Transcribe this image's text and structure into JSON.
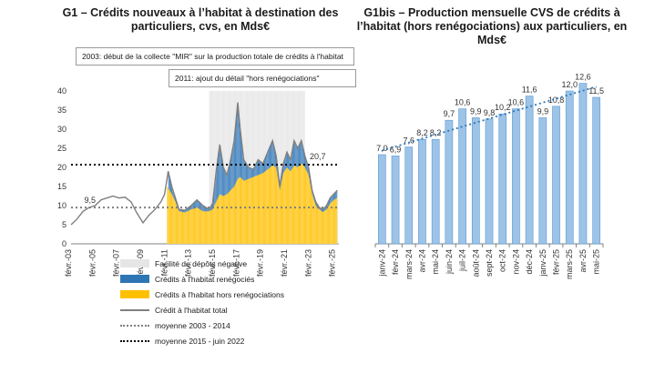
{
  "g1": {
    "title": "G1 – Crédits nouveaux à l’habitat à destination des particuliers, cvs, en Mds€",
    "note1": "2003: début de la collecte \"MIR\" sur la production totale de crédits à l'habitat",
    "note2": "2011: ajout du détail \"hors renégociations\"",
    "legend": [
      {
        "label": "Facilité de dépôts négative",
        "color": "#e6e6e6",
        "kind": "band",
        "icon": "band-swatch"
      },
      {
        "label": "Crédits à l'habitat renégociés",
        "color": "#2e75b6",
        "kind": "bar",
        "icon": "bar-swatch"
      },
      {
        "label": "Crédits à l'habitat hors renégociations",
        "color": "#ffc000",
        "kind": "bar",
        "icon": "bar-swatch"
      },
      {
        "label": "Crédit à l'habitat total",
        "color": "#7f7f7f",
        "kind": "line",
        "icon": "line-swatch"
      },
      {
        "label": "moyenne 2003 - 2014",
        "color": "#7f7f7f",
        "kind": "dotted",
        "icon": "dotted-swatch"
      },
      {
        "label": "moyenne 2015 - juin 2022",
        "color": "#000000",
        "kind": "dotted",
        "icon": "dotted-swatch"
      }
    ],
    "avg1_label": "9,5",
    "avg2_label": "20,7"
  },
  "chart_data": [
    {
      "type": "line",
      "title": "G1 – Crédits nouveaux à l’habitat à destination des particuliers, cvs, en Mds€",
      "ylim": [
        0,
        40
      ],
      "yticks": [
        0,
        5,
        10,
        15,
        20,
        25,
        30,
        35,
        40
      ],
      "xlim": [
        2003.0,
        2025.33
      ],
      "xticks": [
        "févr.-03",
        "févr.-05",
        "févr.-07",
        "févr.-09",
        "févr.-11",
        "févr.-13",
        "févr.-15",
        "févr.-17",
        "févr.-19",
        "févr.-21",
        "févr.-23",
        "févr.-25"
      ],
      "shaded_band": {
        "from": 2014.5,
        "to": 2022.5
      },
      "averages": [
        {
          "name": "moyenne 2003 - 2014",
          "value": 9.5,
          "from": 2003.0,
          "to": 2025.33
        },
        {
          "name": "moyenne 2015 - juin 2022",
          "value": 20.7,
          "from": 2003.0,
          "to": 2025.33
        }
      ],
      "total": {
        "name": "Crédit à l'habitat total",
        "points": [
          [
            2003.0,
            5.0
          ],
          [
            2003.5,
            6.5
          ],
          [
            2004.0,
            8.5
          ],
          [
            2004.5,
            9.5
          ],
          [
            2005.0,
            10.0
          ],
          [
            2005.5,
            11.5
          ],
          [
            2006.0,
            12.0
          ],
          [
            2006.5,
            12.5
          ],
          [
            2007.0,
            12.0
          ],
          [
            2007.5,
            12.2
          ],
          [
            2008.0,
            11.0
          ],
          [
            2008.5,
            8.0
          ],
          [
            2009.0,
            5.5
          ],
          [
            2009.5,
            7.5
          ],
          [
            2010.0,
            9.0
          ],
          [
            2010.5,
            11.0
          ],
          [
            2010.8,
            13.0
          ],
          [
            2011.1,
            19.0
          ],
          [
            2011.4,
            15.0
          ],
          [
            2011.7,
            12.0
          ],
          [
            2012.0,
            9.0
          ],
          [
            2012.5,
            8.8
          ],
          [
            2013.0,
            10.0
          ],
          [
            2013.5,
            11.5
          ],
          [
            2014.0,
            10.0
          ],
          [
            2014.5,
            9.0
          ],
          [
            2014.8,
            10.5
          ],
          [
            2015.1,
            19.0
          ],
          [
            2015.4,
            26.0
          ],
          [
            2015.7,
            20.0
          ],
          [
            2016.0,
            18.0
          ],
          [
            2016.3,
            22.0
          ],
          [
            2016.6,
            27.0
          ],
          [
            2016.9,
            37.0
          ],
          [
            2017.1,
            30.0
          ],
          [
            2017.4,
            22.0
          ],
          [
            2017.8,
            20.0
          ],
          [
            2018.2,
            19.5
          ],
          [
            2018.6,
            22.0
          ],
          [
            2019.0,
            21.0
          ],
          [
            2019.4,
            24.0
          ],
          [
            2019.8,
            27.0
          ],
          [
            2020.1,
            23.0
          ],
          [
            2020.4,
            15.0
          ],
          [
            2020.7,
            21.0
          ],
          [
            2021.0,
            24.0
          ],
          [
            2021.3,
            22.0
          ],
          [
            2021.6,
            27.0
          ],
          [
            2021.9,
            25.0
          ],
          [
            2022.2,
            27.0
          ],
          [
            2022.5,
            23.0
          ],
          [
            2022.8,
            20.0
          ],
          [
            2023.1,
            14.0
          ],
          [
            2023.4,
            11.0
          ],
          [
            2023.7,
            9.5
          ],
          [
            2024.0,
            9.0
          ],
          [
            2024.3,
            10.0
          ],
          [
            2024.6,
            12.0
          ],
          [
            2024.9,
            13.0
          ],
          [
            2025.2,
            14.0
          ]
        ]
      },
      "excl_reneg": {
        "name": "Crédits à l'habitat hors renégociations",
        "points": [
          [
            2011.0,
            15.0
          ],
          [
            2011.4,
            13.0
          ],
          [
            2011.7,
            11.0
          ],
          [
            2012.0,
            8.5
          ],
          [
            2012.5,
            8.2
          ],
          [
            2013.0,
            9.0
          ],
          [
            2013.5,
            9.5
          ],
          [
            2014.0,
            8.5
          ],
          [
            2014.5,
            8.5
          ],
          [
            2014.8,
            9.0
          ],
          [
            2015.1,
            11.0
          ],
          [
            2015.4,
            13.0
          ],
          [
            2015.7,
            12.5
          ],
          [
            2016.0,
            13.0
          ],
          [
            2016.3,
            14.0
          ],
          [
            2016.6,
            15.0
          ],
          [
            2016.9,
            17.0
          ],
          [
            2017.1,
            17.5
          ],
          [
            2017.4,
            16.5
          ],
          [
            2017.8,
            17.0
          ],
          [
            2018.2,
            17.5
          ],
          [
            2018.6,
            18.0
          ],
          [
            2019.0,
            18.5
          ],
          [
            2019.4,
            19.5
          ],
          [
            2019.8,
            20.5
          ],
          [
            2020.1,
            20.0
          ],
          [
            2020.4,
            14.0
          ],
          [
            2020.7,
            18.5
          ],
          [
            2021.0,
            20.0
          ],
          [
            2021.3,
            19.0
          ],
          [
            2021.6,
            20.5
          ],
          [
            2021.9,
            20.0
          ],
          [
            2022.2,
            21.0
          ],
          [
            2022.5,
            20.0
          ],
          [
            2022.8,
            18.0
          ],
          [
            2023.1,
            13.0
          ],
          [
            2023.4,
            10.0
          ],
          [
            2023.7,
            9.0
          ],
          [
            2024.0,
            8.3
          ],
          [
            2024.3,
            9.0
          ],
          [
            2024.6,
            10.5
          ],
          [
            2024.9,
            11.5
          ],
          [
            2025.2,
            12.0
          ]
        ]
      }
    },
    {
      "type": "bar",
      "title": "G1bis – Production mensuelle CVS de crédits à l’habitat (hors renégociations) aux particuliers, en Mds€",
      "categories": [
        "janv-24",
        "févr-24",
        "mars-24",
        "avr-24",
        "mai-24",
        "juin-24",
        "juil-24",
        "août-24",
        "sept-24",
        "oct-24",
        "nov-24",
        "déc-24",
        "janv-25",
        "févr-25",
        "mars-25",
        "avr-25",
        "mai-25"
      ],
      "values": [
        7.0,
        6.9,
        7.6,
        8.2,
        8.2,
        9.7,
        10.6,
        9.9,
        9.8,
        10.2,
        10.6,
        11.6,
        9.9,
        10.8,
        12.0,
        12.6,
        11.5
      ],
      "value_labels": [
        "7,0",
        "6,9",
        "7,6",
        "8,2",
        "8,2",
        "9,7",
        "10,6",
        "9,9",
        "9,8",
        "10,2",
        "10,6",
        "11,6",
        "9,9",
        "10,8",
        "12,0",
        "12,6",
        "11,5"
      ],
      "ylim": [
        0,
        14
      ],
      "bar_color": "#9dc3e6",
      "trendline": {
        "style": "dotted",
        "color": "#2e75b6"
      }
    }
  ]
}
